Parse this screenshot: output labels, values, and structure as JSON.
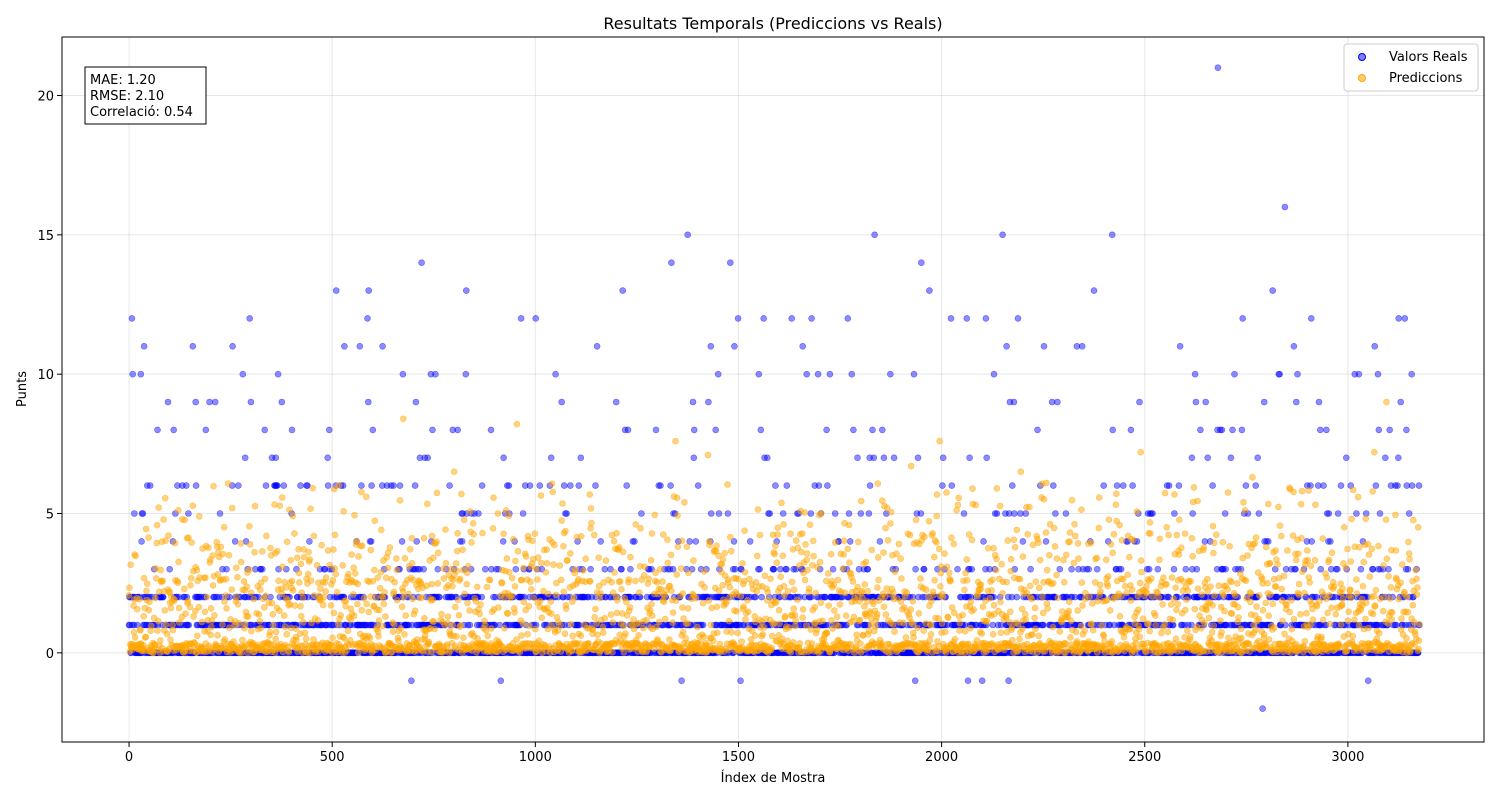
{
  "chart_data": {
    "type": "scatter",
    "title": "Resultats Temporals (Prediccions vs Reals)",
    "xlabel": "Índex de Mostra",
    "ylabel": "Punts",
    "xlim": [
      -165,
      3335
    ],
    "ylim": [
      -3.2,
      22.1
    ],
    "x_ticks": [
      0,
      500,
      1000,
      1500,
      2000,
      2500,
      3000
    ],
    "y_ticks": [
      0,
      5,
      10,
      15,
      20
    ],
    "grid": true,
    "legend_position": "top-right",
    "stats_box": {
      "mae": "MAE: 1.20",
      "rmse": "RMSE: 2.10",
      "correlation": "Correlació: 0.54"
    },
    "sample_count": 3177,
    "series": [
      {
        "name": "Valors Reals",
        "color": "#0000ff",
        "notable_points": [
          {
            "x": 2680,
            "y": 21
          },
          {
            "x": 2845,
            "y": 16
          },
          {
            "x": 1375,
            "y": 15
          },
          {
            "x": 1835,
            "y": 15
          },
          {
            "x": 2150,
            "y": 15
          },
          {
            "x": 2420,
            "y": 15
          },
          {
            "x": 720,
            "y": 14
          },
          {
            "x": 1335,
            "y": 14
          },
          {
            "x": 1480,
            "y": 14
          },
          {
            "x": 1950,
            "y": 14
          },
          {
            "x": 3125,
            "y": 12
          },
          {
            "x": 3140,
            "y": 12
          },
          {
            "x": 510,
            "y": 13
          },
          {
            "x": 590,
            "y": 13
          },
          {
            "x": 830,
            "y": 13
          },
          {
            "x": 1215,
            "y": 13
          },
          {
            "x": 1970,
            "y": 13
          },
          {
            "x": 2375,
            "y": 13
          },
          {
            "x": 2815,
            "y": 13
          },
          {
            "x": 2790,
            "y": -2
          },
          {
            "x": 695,
            "y": -1
          },
          {
            "x": 915,
            "y": -1
          },
          {
            "x": 1360,
            "y": -1
          },
          {
            "x": 1505,
            "y": -1
          },
          {
            "x": 1935,
            "y": -1
          },
          {
            "x": 2065,
            "y": -1
          },
          {
            "x": 2100,
            "y": -1
          },
          {
            "x": 2165,
            "y": -1
          },
          {
            "x": 3050,
            "y": -1
          }
        ]
      },
      {
        "name": "Prediccions",
        "color": "#ffa500",
        "notable_points": [
          {
            "x": 3095,
            "y": 9.0
          },
          {
            "x": 675,
            "y": 8.4
          },
          {
            "x": 955,
            "y": 8.2
          },
          {
            "x": 1995,
            "y": 7.6
          },
          {
            "x": 1345,
            "y": 7.6
          },
          {
            "x": 2490,
            "y": 7.2
          },
          {
            "x": 1425,
            "y": 7.1
          },
          {
            "x": 3065,
            "y": 7.2
          },
          {
            "x": 1925,
            "y": 6.7
          },
          {
            "x": 2195,
            "y": 6.5
          },
          {
            "x": 800,
            "y": 6.5
          },
          {
            "x": 2765,
            "y": 6.3
          }
        ]
      }
    ]
  }
}
